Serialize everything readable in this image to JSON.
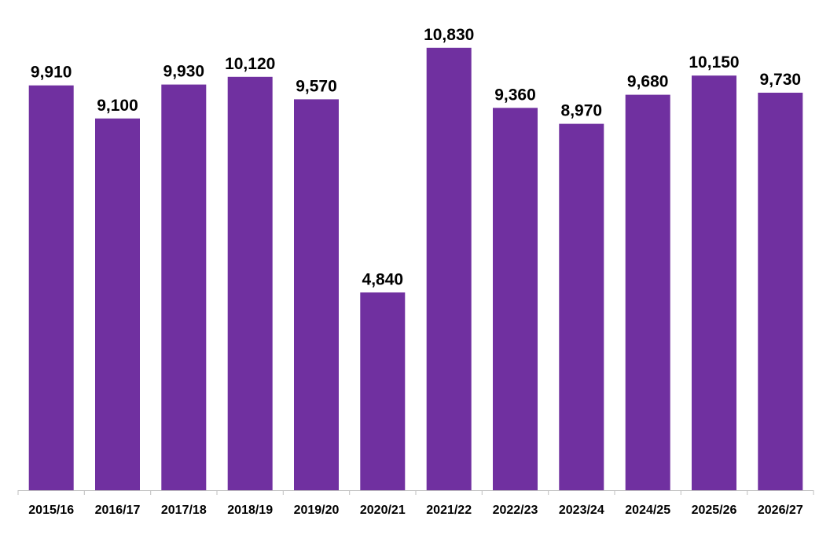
{
  "chart_data": {
    "type": "bar",
    "title": "",
    "xlabel": "",
    "ylabel": "",
    "categories": [
      "2015/16",
      "2016/17",
      "2017/18",
      "2018/19",
      "2019/20",
      "2020/21",
      "2021/22",
      "2022/23",
      "2023/24",
      "2024/25",
      "2025/26",
      "2026/27"
    ],
    "values": [
      9910,
      9100,
      9930,
      10120,
      9570,
      4840,
      10830,
      9360,
      8970,
      9680,
      10150,
      9730
    ],
    "value_labels": [
      "9,910",
      "9,100",
      "9,930",
      "10,120",
      "9,570",
      "4,840",
      "10,830",
      "9,360",
      "8,970",
      "9,680",
      "10,150",
      "9,730"
    ],
    "ylim": [
      0,
      12000
    ],
    "grid": false,
    "legend": "none",
    "bar_color": "#7030A0",
    "axis_color": "#BFBFBF"
  }
}
